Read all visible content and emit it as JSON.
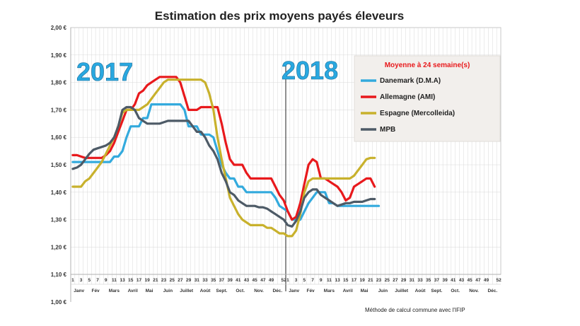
{
  "chart_data": {
    "type": "line",
    "title": "Estimation des prix moyens payés éleveurs",
    "ylim": [
      1.0,
      2.0
    ],
    "yticks": [
      "1,00 €",
      "1,10 €",
      "1,20 €",
      "1,30 €",
      "1,40 €",
      "1,50 €",
      "1,60 €",
      "1,70 €",
      "1,80 €",
      "1,90 €",
      "2,00 €"
    ],
    "ytick_values": [
      1.0,
      1.1,
      1.2,
      1.3,
      1.4,
      1.5,
      1.6,
      1.7,
      1.8,
      1.9,
      2.0
    ],
    "week_labels_2017": [
      "1",
      "3",
      "5",
      "7",
      "9",
      "11",
      "13",
      "15",
      "17",
      "19",
      "21",
      "23",
      "25",
      "27",
      "29",
      "31",
      "33",
      "35",
      "37",
      "39",
      "41",
      "43",
      "45",
      "47",
      "49",
      "52"
    ],
    "week_labels_2018": [
      "1",
      "3",
      "5",
      "7",
      "9",
      "11",
      "13",
      "15",
      "17",
      "19",
      "21",
      "23",
      "25",
      "27",
      "29",
      "31",
      "33",
      "35",
      "37",
      "39",
      "41",
      "43",
      "45",
      "47",
      "49",
      "52"
    ],
    "month_labels": [
      "Janv",
      "Fév",
      "Mars",
      "Avril",
      "Mai",
      "Juin",
      "Juillet",
      "Août",
      "Sept.",
      "Oct.",
      "Nov.",
      "Déc."
    ],
    "year_labels": [
      "2017",
      "2018"
    ],
    "legend_title": "Moyenne à  24 semaine(s)",
    "source_note": "Méthode de calcul commune avec l'IFIP",
    "series": [
      {
        "name": "Danemark (D.M.A)",
        "color": "#33aadd",
        "points": [
          [
            1,
            1.51
          ],
          [
            2,
            1.51
          ],
          [
            3,
            1.51
          ],
          [
            4,
            1.51
          ],
          [
            5,
            1.51
          ],
          [
            6,
            1.51
          ],
          [
            7,
            1.51
          ],
          [
            8,
            1.51
          ],
          [
            9,
            1.51
          ],
          [
            10,
            1.51
          ],
          [
            11,
            1.53
          ],
          [
            12,
            1.53
          ],
          [
            13,
            1.55
          ],
          [
            14,
            1.6
          ],
          [
            15,
            1.64
          ],
          [
            16,
            1.64
          ],
          [
            17,
            1.64
          ],
          [
            18,
            1.67
          ],
          [
            19,
            1.67
          ],
          [
            20,
            1.72
          ],
          [
            21,
            1.72
          ],
          [
            22,
            1.72
          ],
          [
            23,
            1.72
          ],
          [
            24,
            1.72
          ],
          [
            25,
            1.72
          ],
          [
            26,
            1.72
          ],
          [
            27,
            1.72
          ],
          [
            28,
            1.7
          ],
          [
            29,
            1.64
          ],
          [
            30,
            1.64
          ],
          [
            31,
            1.64
          ],
          [
            32,
            1.61
          ],
          [
            33,
            1.61
          ],
          [
            34,
            1.61
          ],
          [
            35,
            1.6
          ],
          [
            36,
            1.55
          ],
          [
            37,
            1.5
          ],
          [
            38,
            1.47
          ],
          [
            39,
            1.45
          ],
          [
            40,
            1.45
          ],
          [
            41,
            1.42
          ],
          [
            42,
            1.42
          ],
          [
            43,
            1.4
          ],
          [
            44,
            1.4
          ],
          [
            45,
            1.4
          ],
          [
            46,
            1.4
          ],
          [
            47,
            1.4
          ],
          [
            48,
            1.4
          ],
          [
            49,
            1.4
          ],
          [
            50,
            1.38
          ],
          [
            51,
            1.35
          ],
          [
            52,
            1.34
          ],
          [
            53,
            1.33
          ],
          [
            54,
            1.3
          ],
          [
            55,
            1.3
          ],
          [
            56,
            1.3
          ],
          [
            57,
            1.33
          ],
          [
            58,
            1.36
          ],
          [
            59,
            1.38
          ],
          [
            60,
            1.4
          ],
          [
            61,
            1.4
          ],
          [
            62,
            1.4
          ],
          [
            63,
            1.36
          ],
          [
            64,
            1.36
          ],
          [
            65,
            1.35
          ],
          [
            66,
            1.35
          ],
          [
            67,
            1.35
          ],
          [
            68,
            1.35
          ],
          [
            69,
            1.35
          ],
          [
            70,
            1.35
          ],
          [
            71,
            1.35
          ],
          [
            72,
            1.35
          ],
          [
            73,
            1.35
          ],
          [
            74,
            1.35
          ],
          [
            75,
            1.35
          ]
        ]
      },
      {
        "name": "Allemagne (AMI)",
        "color": "#e8191c",
        "points": [
          [
            1,
            1.535
          ],
          [
            2,
            1.535
          ],
          [
            3,
            1.53
          ],
          [
            4,
            1.525
          ],
          [
            5,
            1.525
          ],
          [
            6,
            1.525
          ],
          [
            7,
            1.525
          ],
          [
            8,
            1.525
          ],
          [
            9,
            1.535
          ],
          [
            10,
            1.55
          ],
          [
            11,
            1.58
          ],
          [
            12,
            1.62
          ],
          [
            13,
            1.66
          ],
          [
            14,
            1.7
          ],
          [
            15,
            1.7
          ],
          [
            16,
            1.72
          ],
          [
            17,
            1.76
          ],
          [
            18,
            1.77
          ],
          [
            19,
            1.79
          ],
          [
            20,
            1.8
          ],
          [
            21,
            1.81
          ],
          [
            22,
            1.82
          ],
          [
            23,
            1.82
          ],
          [
            24,
            1.82
          ],
          [
            25,
            1.82
          ],
          [
            26,
            1.82
          ],
          [
            27,
            1.8
          ],
          [
            28,
            1.75
          ],
          [
            29,
            1.7
          ],
          [
            30,
            1.7
          ],
          [
            31,
            1.7
          ],
          [
            32,
            1.71
          ],
          [
            33,
            1.71
          ],
          [
            34,
            1.71
          ],
          [
            35,
            1.71
          ],
          [
            36,
            1.71
          ],
          [
            37,
            1.65
          ],
          [
            38,
            1.58
          ],
          [
            39,
            1.52
          ],
          [
            40,
            1.5
          ],
          [
            41,
            1.5
          ],
          [
            42,
            1.5
          ],
          [
            43,
            1.47
          ],
          [
            44,
            1.45
          ],
          [
            45,
            1.45
          ],
          [
            46,
            1.45
          ],
          [
            47,
            1.45
          ],
          [
            48,
            1.45
          ],
          [
            49,
            1.45
          ],
          [
            50,
            1.42
          ],
          [
            51,
            1.39
          ],
          [
            52,
            1.37
          ],
          [
            53,
            1.33
          ],
          [
            54,
            1.3
          ],
          [
            55,
            1.31
          ],
          [
            56,
            1.36
          ],
          [
            57,
            1.43
          ],
          [
            58,
            1.5
          ],
          [
            59,
            1.52
          ],
          [
            60,
            1.51
          ],
          [
            61,
            1.45
          ],
          [
            62,
            1.45
          ],
          [
            63,
            1.44
          ],
          [
            64,
            1.43
          ],
          [
            65,
            1.42
          ],
          [
            66,
            1.4
          ],
          [
            67,
            1.37
          ],
          [
            68,
            1.38
          ],
          [
            69,
            1.42
          ],
          [
            70,
            1.43
          ],
          [
            71,
            1.44
          ],
          [
            72,
            1.45
          ],
          [
            73,
            1.45
          ],
          [
            74,
            1.42
          ]
        ]
      },
      {
        "name": "Espagne (Mercolleida)",
        "color": "#c8b12c",
        "points": [
          [
            1,
            1.42
          ],
          [
            2,
            1.42
          ],
          [
            3,
            1.42
          ],
          [
            4,
            1.44
          ],
          [
            5,
            1.45
          ],
          [
            6,
            1.47
          ],
          [
            7,
            1.49
          ],
          [
            8,
            1.51
          ],
          [
            9,
            1.54
          ],
          [
            10,
            1.57
          ],
          [
            11,
            1.6
          ],
          [
            12,
            1.64
          ],
          [
            13,
            1.69
          ],
          [
            14,
            1.7
          ],
          [
            15,
            1.7
          ],
          [
            16,
            1.7
          ],
          [
            17,
            1.7
          ],
          [
            18,
            1.71
          ],
          [
            19,
            1.72
          ],
          [
            20,
            1.74
          ],
          [
            21,
            1.76
          ],
          [
            22,
            1.78
          ],
          [
            23,
            1.8
          ],
          [
            24,
            1.81
          ],
          [
            25,
            1.81
          ],
          [
            26,
            1.81
          ],
          [
            27,
            1.81
          ],
          [
            28,
            1.81
          ],
          [
            29,
            1.81
          ],
          [
            30,
            1.81
          ],
          [
            31,
            1.81
          ],
          [
            32,
            1.81
          ],
          [
            33,
            1.8
          ],
          [
            34,
            1.76
          ],
          [
            35,
            1.7
          ],
          [
            36,
            1.6
          ],
          [
            37,
            1.52
          ],
          [
            38,
            1.45
          ],
          [
            39,
            1.38
          ],
          [
            40,
            1.35
          ],
          [
            41,
            1.32
          ],
          [
            42,
            1.3
          ],
          [
            43,
            1.29
          ],
          [
            44,
            1.28
          ],
          [
            45,
            1.28
          ],
          [
            46,
            1.28
          ],
          [
            47,
            1.28
          ],
          [
            48,
            1.27
          ],
          [
            49,
            1.27
          ],
          [
            50,
            1.26
          ],
          [
            51,
            1.25
          ],
          [
            52,
            1.25
          ],
          [
            53,
            1.24
          ],
          [
            54,
            1.24
          ],
          [
            55,
            1.26
          ],
          [
            56,
            1.32
          ],
          [
            57,
            1.4
          ],
          [
            58,
            1.44
          ],
          [
            59,
            1.45
          ],
          [
            60,
            1.45
          ],
          [
            61,
            1.45
          ],
          [
            62,
            1.45
          ],
          [
            63,
            1.45
          ],
          [
            64,
            1.45
          ],
          [
            65,
            1.45
          ],
          [
            66,
            1.45
          ],
          [
            67,
            1.45
          ],
          [
            68,
            1.45
          ],
          [
            69,
            1.46
          ],
          [
            70,
            1.48
          ],
          [
            71,
            1.5
          ],
          [
            72,
            1.52
          ],
          [
            73,
            1.525
          ],
          [
            74,
            1.525
          ]
        ]
      },
      {
        "name": "MPB",
        "color": "#4d5a66",
        "points": [
          [
            1,
            1.485
          ],
          [
            2,
            1.49
          ],
          [
            3,
            1.5
          ],
          [
            4,
            1.52
          ],
          [
            5,
            1.54
          ],
          [
            6,
            1.555
          ],
          [
            7,
            1.56
          ],
          [
            8,
            1.565
          ],
          [
            9,
            1.57
          ],
          [
            10,
            1.58
          ],
          [
            11,
            1.6
          ],
          [
            12,
            1.64
          ],
          [
            13,
            1.7
          ],
          [
            14,
            1.71
          ],
          [
            15,
            1.71
          ],
          [
            16,
            1.7
          ],
          [
            17,
            1.67
          ],
          [
            18,
            1.66
          ],
          [
            19,
            1.65
          ],
          [
            20,
            1.65
          ],
          [
            21,
            1.65
          ],
          [
            22,
            1.65
          ],
          [
            23,
            1.655
          ],
          [
            24,
            1.66
          ],
          [
            25,
            1.66
          ],
          [
            26,
            1.66
          ],
          [
            27,
            1.66
          ],
          [
            28,
            1.66
          ],
          [
            29,
            1.66
          ],
          [
            30,
            1.64
          ],
          [
            31,
            1.62
          ],
          [
            32,
            1.62
          ],
          [
            33,
            1.6
          ],
          [
            34,
            1.57
          ],
          [
            35,
            1.55
          ],
          [
            36,
            1.52
          ],
          [
            37,
            1.47
          ],
          [
            38,
            1.44
          ],
          [
            39,
            1.4
          ],
          [
            40,
            1.39
          ],
          [
            41,
            1.37
          ],
          [
            42,
            1.36
          ],
          [
            43,
            1.35
          ],
          [
            44,
            1.35
          ],
          [
            45,
            1.35
          ],
          [
            46,
            1.345
          ],
          [
            47,
            1.345
          ],
          [
            48,
            1.34
          ],
          [
            49,
            1.33
          ],
          [
            50,
            1.32
          ],
          [
            51,
            1.31
          ],
          [
            52,
            1.3
          ],
          [
            53,
            1.28
          ],
          [
            54,
            1.275
          ],
          [
            55,
            1.295
          ],
          [
            56,
            1.33
          ],
          [
            57,
            1.38
          ],
          [
            58,
            1.4
          ],
          [
            59,
            1.41
          ],
          [
            60,
            1.41
          ],
          [
            61,
            1.39
          ],
          [
            62,
            1.38
          ],
          [
            63,
            1.37
          ],
          [
            64,
            1.36
          ],
          [
            65,
            1.35
          ],
          [
            66,
            1.355
          ],
          [
            67,
            1.36
          ],
          [
            68,
            1.36
          ],
          [
            69,
            1.365
          ],
          [
            70,
            1.365
          ],
          [
            71,
            1.365
          ],
          [
            72,
            1.37
          ],
          [
            73,
            1.375
          ],
          [
            74,
            1.375
          ]
        ]
      }
    ]
  }
}
